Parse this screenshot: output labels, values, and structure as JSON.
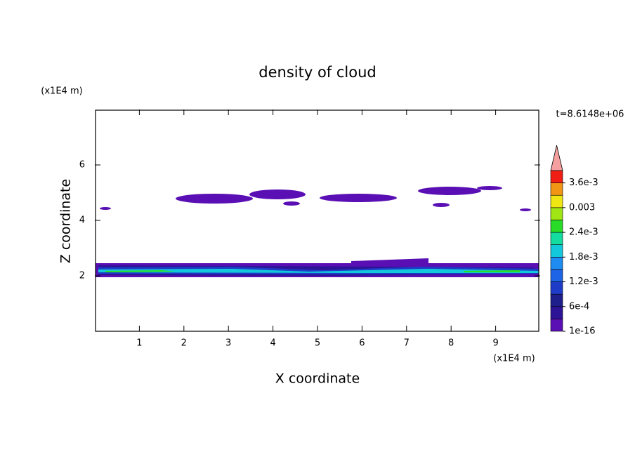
{
  "chart_data": {
    "type": "contour",
    "title": "density of cloud",
    "xlabel": "X coordinate",
    "ylabel": "Z coordinate",
    "xunit": "(x1E4 m)",
    "yunit": "(x1E4 m)",
    "time_label": "t=8.6148e+06",
    "xlim": [
      0,
      10
    ],
    "ylim": [
      0,
      8
    ],
    "xticks": [
      1,
      2,
      3,
      4,
      5,
      6,
      7,
      8,
      9
    ],
    "yticks": [
      2,
      4,
      6
    ],
    "colorbar": {
      "lim": [
        1e-16,
        0.0039
      ],
      "ticks": [
        {
          "value": 1e-16,
          "label": "1e-16"
        },
        {
          "value": 0.0006,
          "label": "6e-4"
        },
        {
          "value": 0.0012,
          "label": "1.2e-3"
        },
        {
          "value": 0.0018,
          "label": "1.8e-3"
        },
        {
          "value": 0.0024,
          "label": "2.4e-3"
        },
        0.003,
        {
          "value": 0.0036,
          "label": "3.6e-3"
        }
      ],
      "colors": [
        "#5a0fb4",
        "#2d1496",
        "#1e1e8c",
        "#1e3cc8",
        "#1e64e6",
        "#1e8cf0",
        "#14c8dc",
        "#14dca0",
        "#28dc28",
        "#a0e614",
        "#f0e614",
        "#f09614",
        "#f01e14"
      ],
      "over_color": "#f4a0a0"
    }
  }
}
